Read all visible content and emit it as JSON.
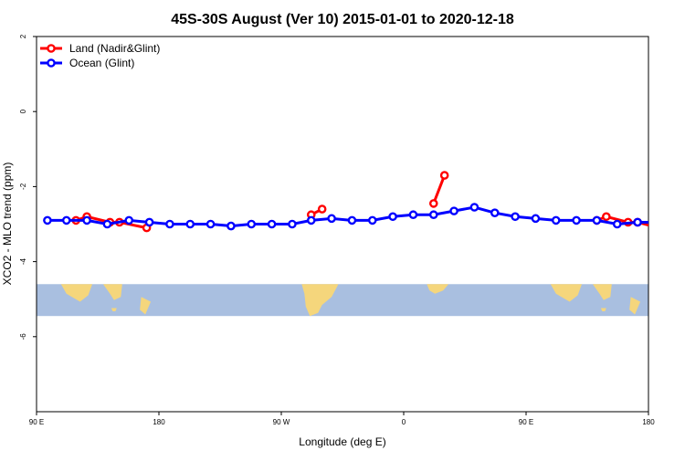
{
  "chart_data": {
    "type": "line",
    "title": "45S-30S August (Ver 10)   2015-01-01 to 2020-12-18",
    "xlabel": "Longitude (deg E)",
    "ylabel": "XCO2 - MLO trend (ppm)",
    "xlim": [
      90,
      540
    ],
    "ylim": [
      -8,
      2
    ],
    "x_ticks": [
      {
        "value": 90,
        "label": "90 E"
      },
      {
        "value": 180,
        "label": "180"
      },
      {
        "value": 270,
        "label": "90 W"
      },
      {
        "value": 360,
        "label": "0"
      },
      {
        "value": 450,
        "label": "90 E"
      },
      {
        "value": 540,
        "label": "180"
      }
    ],
    "y_ticks": [
      {
        "value": 2,
        "label": "2"
      },
      {
        "value": 0,
        "label": "0"
      },
      {
        "value": -2,
        "label": "-2"
      },
      {
        "value": -4,
        "label": "-4"
      },
      {
        "value": -6,
        "label": "-6"
      }
    ],
    "grid": false,
    "legend_position": "top-left",
    "map_strip": {
      "y_range": [
        -4.6,
        -5.45
      ],
      "ocean_color": "#a9bfe0",
      "land_color": "#f5d67c"
    },
    "series": [
      {
        "name": "Land (Nadir&Glint)",
        "color": "#ff0000",
        "segments": [
          [
            [
              119,
              -2.9
            ],
            [
              127,
              -2.8
            ],
            [
              144,
              -2.95
            ],
            [
              151,
              -2.95
            ],
            [
              171,
              -3.1
            ]
          ],
          [
            [
              292,
              -2.75
            ],
            [
              300,
              -2.6
            ]
          ],
          [
            [
              382,
              -2.45
            ],
            [
              390,
              -1.7
            ]
          ],
          [
            [
              502,
              -2.9
            ],
            [
              509,
              -2.8
            ],
            [
              525,
              -2.95
            ],
            [
              532,
              -2.95
            ],
            [
              548,
              -3.1
            ]
          ]
        ]
      },
      {
        "name": "Ocean (Glint)",
        "color": "#0000ff",
        "segments": [
          [
            [
              98,
              -2.9
            ],
            [
              112,
              -2.9
            ],
            [
              127,
              -2.9
            ],
            [
              142,
              -3.0
            ],
            [
              158,
              -2.9
            ],
            [
              173,
              -2.95
            ],
            [
              188,
              -3.0
            ],
            [
              203,
              -3.0
            ],
            [
              218,
              -3.0
            ],
            [
              233,
              -3.05
            ],
            [
              248,
              -3.0
            ],
            [
              263,
              -3.0
            ],
            [
              278,
              -3.0
            ],
            [
              292,
              -2.9
            ],
            [
              307,
              -2.85
            ],
            [
              322,
              -2.9
            ],
            [
              337,
              -2.9
            ],
            [
              352,
              -2.8
            ],
            [
              367,
              -2.75
            ],
            [
              382,
              -2.75
            ],
            [
              397,
              -2.65
            ],
            [
              412,
              -2.55
            ],
            [
              427,
              -2.7
            ],
            [
              442,
              -2.8
            ],
            [
              457,
              -2.85
            ],
            [
              472,
              -2.9
            ],
            [
              487,
              -2.9
            ],
            [
              502,
              -2.9
            ],
            [
              517,
              -3.0
            ],
            [
              532,
              -2.95
            ],
            [
              547,
              -2.95
            ]
          ]
        ]
      }
    ]
  }
}
